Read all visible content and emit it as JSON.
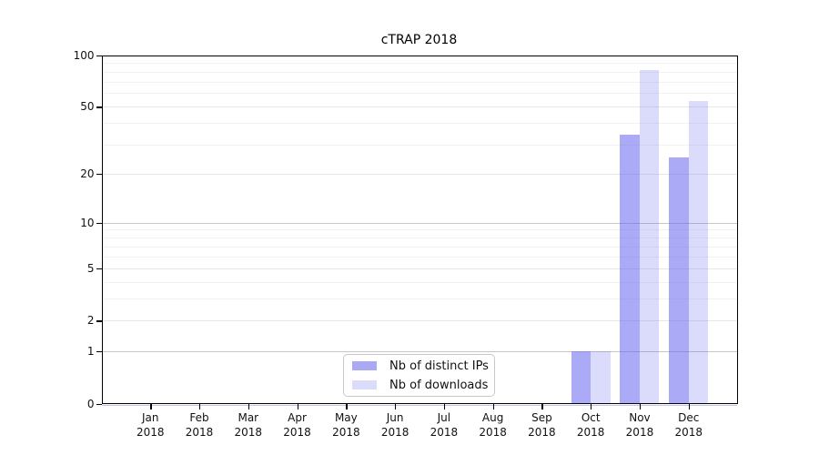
{
  "figure": {
    "title": "cTRAP 2018"
  },
  "chart_data": {
    "type": "bar",
    "title": "cTRAP 2018",
    "categories": [
      "Jan",
      "Feb",
      "Mar",
      "Apr",
      "May",
      "Jun",
      "Jul",
      "Aug",
      "Sep",
      "Oct",
      "Nov",
      "Dec"
    ],
    "category_year": "2018",
    "series": [
      {
        "name": "Nb of distinct IPs",
        "values": [
          0,
          0,
          0,
          0,
          0,
          0,
          0,
          0,
          0,
          1,
          34,
          25
        ],
        "fill": "rgba(100,100,240,0.55)",
        "swatch_color": "#a9a9f6"
      },
      {
        "name": "Nb of downloads",
        "values": [
          0,
          0,
          0,
          0,
          0,
          0,
          0,
          0,
          0,
          1,
          82,
          54
        ],
        "fill": "rgba(100,100,240,0.23)",
        "swatch_color": "#dbdbfa"
      }
    ],
    "y_axis": {
      "scale": "symlog",
      "lim": [
        0,
        100
      ],
      "ticks": [
        0,
        1,
        2,
        5,
        10,
        20,
        50,
        100
      ],
      "minor_gridlines": [
        3,
        4,
        6,
        7,
        8,
        9,
        30,
        40,
        60,
        70,
        80,
        90
      ],
      "decade_values": [
        1,
        10
      ]
    },
    "grid": {
      "on": true,
      "orientation": "horizontal",
      "decade_color": "#c6c6c6",
      "tick_color": "#e7e7e7",
      "minor_color": "#f2f2f2"
    },
    "baseline_color": "#b9b9ef",
    "legend_position": "bottom-center"
  }
}
